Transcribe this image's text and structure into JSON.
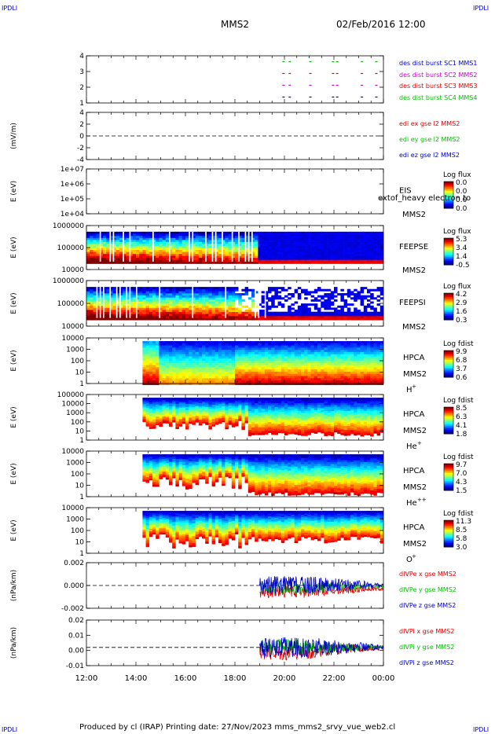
{
  "corner_marks": [
    "IPDLI",
    "IPDLI",
    "IPDLI",
    "IPDLI"
  ],
  "header": {
    "mission": "MMS2",
    "datetime": "02/Feb/2016 12:00"
  },
  "footer": {
    "text": "Produced by cl (IRAP)   Printing date: 27/Nov/2023   mms_mms2_srvy_vue_web2.cl"
  },
  "colors": {
    "mms1": "#0000c8",
    "mms2": "#c800c8",
    "mms3": "#e00000",
    "mms4": "#00c000",
    "x_comp": "#e00000",
    "y_comp": "#00c000",
    "z_comp": "#0000c8"
  },
  "chart_data": [
    {
      "type": "scatter",
      "panel": "burst",
      "yticks": [
        "1",
        "2",
        "3",
        "4"
      ],
      "ylim": [
        0.5,
        4.5
      ],
      "legend": [
        "des dist burst SC1 MMS1",
        "des dist burst SC2 MMS2",
        "des dist burst SC3 MMS3",
        "des dist burst SC4 MMS4"
      ],
      "series": [
        {
          "name": "des dist burst SC1 MMS1",
          "y": 1,
          "x": [
            "19:55",
            "20:10",
            "21:00",
            "21:55",
            "22:05",
            "23:05",
            "23:40"
          ]
        },
        {
          "name": "des dist burst SC2 MMS2",
          "y": 2,
          "x": [
            "19:55",
            "20:10",
            "21:00",
            "21:55",
            "22:05",
            "23:05",
            "23:40"
          ]
        },
        {
          "name": "des dist burst SC3 MMS3",
          "y": 3,
          "x": [
            "19:55",
            "20:10",
            "21:00",
            "21:55",
            "22:05",
            "23:05",
            "23:40"
          ]
        },
        {
          "name": "des dist burst SC4 MMS4",
          "y": 4,
          "x": [
            "19:55",
            "20:10",
            "21:00",
            "21:55",
            "22:05",
            "23:05",
            "23:40"
          ]
        }
      ]
    },
    {
      "type": "line",
      "panel": "edi",
      "ylabel": "(mV/m)",
      "yticks": [
        "-4",
        "-2",
        "0",
        "2",
        "4"
      ],
      "ylim": [
        -4.5,
        4.5
      ],
      "legend": [
        "edi ex gse l2 MMS2",
        "edi ey gse l2 MMS2",
        "edi ez gse l2 MMS2"
      ]
    },
    {
      "type": "heatmap",
      "panel": "eis",
      "ylabel": "E (eV)",
      "yticks": [
        "1e+04",
        "1e+05",
        "1e+06",
        "1e+07"
      ],
      "label_lines": [
        "EIS",
        "MMS2"
      ],
      "overlay_text": "extof_heavy electron to",
      "colorbar": {
        "title": "Log flux",
        "ticks": [
          "0.0",
          "0.0",
          "0.0",
          "0.0"
        ]
      }
    },
    {
      "type": "heatmap",
      "panel": "feepse",
      "ylabel": "E (eV)",
      "yticks": [
        "10000",
        "100000",
        "1000000"
      ],
      "label_lines": [
        "FEEPSE",
        "MMS2"
      ],
      "colorbar": {
        "title": "Log flux",
        "ticks": [
          "5.3",
          "3.4",
          "1.4",
          "-0.5"
        ]
      }
    },
    {
      "type": "heatmap",
      "panel": "feepsi",
      "ylabel": "E (eV)",
      "yticks": [
        "10000",
        "100000",
        "1000000"
      ],
      "label_lines": [
        "FEEPSI",
        "MMS2"
      ],
      "colorbar": {
        "title": "Log flux",
        "ticks": [
          "4.2",
          "2.9",
          "1.6",
          "0.3"
        ]
      }
    },
    {
      "type": "heatmap",
      "panel": "hpca_h",
      "ylabel": "E (eV)",
      "yticks": [
        "1",
        "10",
        "100",
        "1000",
        "10000"
      ],
      "label_lines": [
        "HPCA",
        "MMS2"
      ],
      "species": "H",
      "charge": "+",
      "colorbar": {
        "title": "Log fdist",
        "ticks": [
          "9.9",
          "6.8",
          "3.7",
          "0.6"
        ]
      }
    },
    {
      "type": "heatmap",
      "panel": "hpca_he",
      "ylabel": "E (eV)",
      "yticks": [
        "1",
        "10",
        "100",
        "1000",
        "10000",
        "100000"
      ],
      "label_lines": [
        "HPCA",
        "MMS2"
      ],
      "species": "He",
      "charge": "+",
      "colorbar": {
        "title": "Log fdist",
        "ticks": [
          "8.5",
          "6.3",
          "4.1",
          "1.8"
        ]
      }
    },
    {
      "type": "heatmap",
      "panel": "hpca_he2",
      "ylabel": "E (eV)",
      "yticks": [
        "1",
        "10",
        "100",
        "1000",
        "10000"
      ],
      "label_lines": [
        "HPCA",
        "MMS2"
      ],
      "species": "He",
      "charge": "++",
      "colorbar": {
        "title": "Log fdist",
        "ticks": [
          "9.7",
          "7.0",
          "4.3",
          "1.5"
        ]
      }
    },
    {
      "type": "heatmap",
      "panel": "hpca_o",
      "ylabel": "E (eV)",
      "yticks": [
        "1",
        "10",
        "100",
        "1000",
        "10000"
      ],
      "label_lines": [
        "HPCA",
        "MMS2"
      ],
      "species": "O",
      "charge": "+",
      "colorbar": {
        "title": "Log fdist",
        "ticks": [
          "11.3",
          "8.5",
          "5.8",
          "3.0"
        ]
      }
    },
    {
      "type": "line",
      "panel": "divpe",
      "ylabel": "(nPa/km)",
      "yticks": [
        "-0.002",
        "0.000",
        "0.002"
      ],
      "ylim": [
        -0.0035,
        0.0035
      ],
      "legend": [
        "dIVPe x gse MMS2",
        "dIVPe y gse MMS2",
        "dIVPe z gse MMS2"
      ],
      "series": [
        {
          "name": "dIVPe x gse MMS2",
          "x": [
            "19:00",
            "20:00",
            "21:00",
            "22:00",
            "23:00",
            "00:00"
          ],
          "y": [
            -0.0009,
            -0.001,
            -0.0009,
            -0.0008,
            -0.0006,
            -0.0005
          ]
        },
        {
          "name": "dIVPe y gse MMS2",
          "x": [
            "19:00",
            "20:00",
            "21:00",
            "22:00",
            "23:00",
            "00:00"
          ],
          "y": [
            -0.0004,
            -0.0003,
            -0.0003,
            -0.0002,
            -0.0002,
            -0.0002
          ]
        },
        {
          "name": "dIVPe z gse MMS2",
          "x": [
            "19:00",
            "20:00",
            "21:00",
            "22:00",
            "23:00",
            "00:00"
          ],
          "y": [
            0.0001,
            0.0001,
            0.0,
            0.0001,
            0.0001,
            0.0
          ]
        }
      ]
    },
    {
      "type": "line",
      "panel": "divpi",
      "ylabel": "(nPa/km)",
      "yticks": [
        "-0.01",
        "0.00",
        "0.01",
        "0.02"
      ],
      "ylim": [
        -0.016,
        0.024
      ],
      "legend": [
        "dIVPi x gse MMS2",
        "dIVPi y gse MMS2",
        "dIVPi z gse MMS2"
      ],
      "series": [
        {
          "name": "dIVPi x gse MMS2",
          "x": [
            "19:00",
            "20:00",
            "21:00",
            "22:00",
            "23:00",
            "00:00"
          ],
          "y": [
            -0.004,
            -0.005,
            -0.004,
            -0.002,
            -0.001,
            0.0
          ]
        },
        {
          "name": "dIVPi y gse MMS2",
          "x": [
            "19:00",
            "20:00",
            "21:00",
            "22:00",
            "23:00",
            "00:00"
          ],
          "y": [
            0.001,
            0.001,
            0.0,
            0.0,
            0.0,
            0.0
          ]
        },
        {
          "name": "dIVPi z gse MMS2",
          "x": [
            "19:00",
            "20:00",
            "21:00",
            "22:00",
            "23:00",
            "00:00"
          ],
          "y": [
            0.0,
            0.0,
            0.0,
            0.0,
            0.0,
            0.0
          ]
        }
      ]
    }
  ],
  "time_axis": {
    "ticks": [
      "12:00",
      "14:00",
      "16:00",
      "18:00",
      "20:00",
      "22:00",
      "00:00"
    ],
    "range_hours": [
      12,
      24
    ]
  }
}
